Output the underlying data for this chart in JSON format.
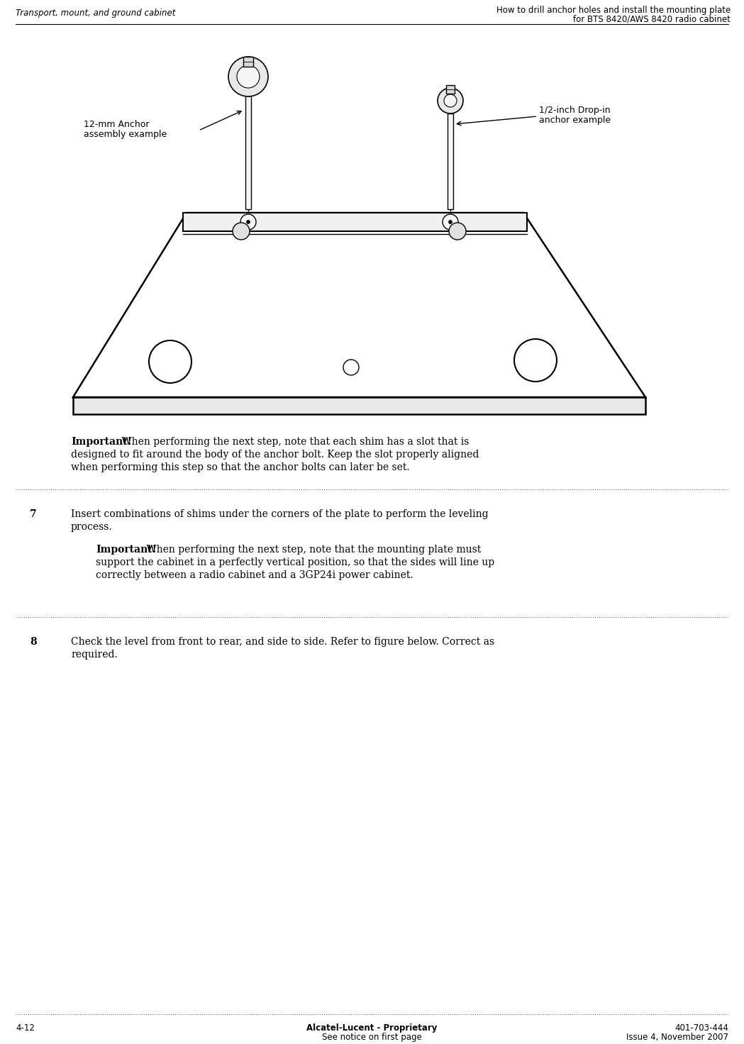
{
  "header_left": "Transport, mount, and ground cabinet",
  "header_right_line1": "How to drill anchor holes and install the mounting plate",
  "header_right_line2": "for BTS 8420/AWS 8420 radio cabinet",
  "footer_left": "4-12",
  "footer_center_line1": "Alcatel-Lucent - Proprietary",
  "footer_center_line2": "See notice on first page",
  "footer_right_line1": "401-703-444",
  "footer_right_line2": "Issue 4, November 2007",
  "label_left_line1": "12-mm Anchor",
  "label_left_line2": "assembly example",
  "label_right_line1": "1/2-inch Drop-in",
  "label_right_line2": "anchor example",
  "important_pre7_bold": "Important!",
  "important_pre7_rest_line1": " When performing the next step, note that each shim has a slot that is",
  "important_pre7_rest_line2": "designed to fit around the body of the anchor bolt. Keep the slot properly aligned",
  "important_pre7_rest_line3": "when performing this step so that the anchor bolts can later be set.",
  "step7_number": "7",
  "step7_line1": "Insert combinations of shims under the corners of the plate to perform the leveling",
  "step7_line2": "process.",
  "step7_imp_bold": "Important!",
  "step7_imp_line1": " When performing the next step, note that the mounting plate must",
  "step7_imp_line2": "support the cabinet in a perfectly vertical position, so that the sides will line up",
  "step7_imp_line3": "correctly between a radio cabinet and a 3GP24i power cabinet.",
  "step8_number": "8",
  "step8_line1": "Check the level from front to rear, and side to side. Refer to figure below. Correct as",
  "step8_line2": "required.",
  "bg_color": "#ffffff",
  "text_color": "#000000",
  "plate_fill": "#ffffff",
  "plate_edge": "#000000",
  "header_fontsize": 8.5,
  "body_fontsize": 10.0,
  "footer_fontsize": 8.5
}
